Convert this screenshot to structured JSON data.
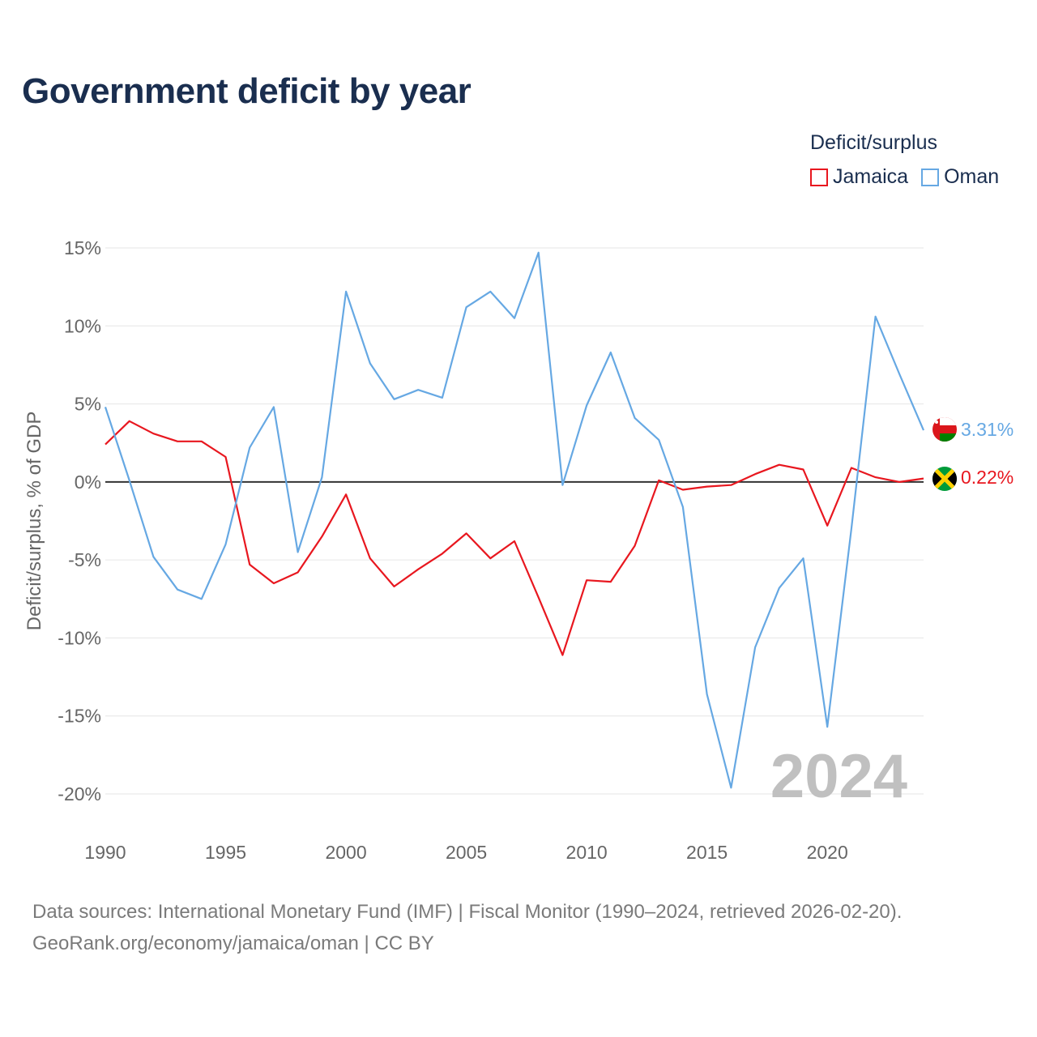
{
  "title": "Government deficit by year",
  "legend": {
    "title": "Deficit/surplus",
    "items": [
      {
        "label": "Jamaica",
        "color": "#e8171f"
      },
      {
        "label": "Oman",
        "color": "#66a8e3"
      }
    ]
  },
  "source": {
    "line1": "Data sources: International Monetary Fund (IMF) | Fiscal Monitor (1990–2024, retrieved 2026-02-20).",
    "line2": "GeoRank.org/economy/jamaica/oman | CC BY"
  },
  "chart_data": {
    "type": "line",
    "title": "Government deficit by year",
    "xlabel": "",
    "ylabel": "Deficit/surplus, % of GDP",
    "xlim": [
      1990,
      2024
    ],
    "ylim": [
      -20,
      15
    ],
    "xticks": [
      1990,
      1995,
      2000,
      2005,
      2010,
      2015,
      2020
    ],
    "xtick_labels": [
      "1990",
      "1995",
      "2000",
      "2005",
      "2010",
      "2015",
      "2020"
    ],
    "yticks": [
      15,
      10,
      5,
      0,
      -5,
      -10,
      -15,
      -20
    ],
    "ytick_labels": [
      "15%",
      "10%",
      "5%",
      "0%",
      "-5%",
      "-10%",
      "-15%",
      "-20%"
    ],
    "watermark_year": "2024",
    "grid": true,
    "legend_position": "top-right",
    "x": [
      1990,
      1991,
      1992,
      1993,
      1994,
      1995,
      1996,
      1997,
      1998,
      1999,
      2000,
      2001,
      2002,
      2003,
      2004,
      2005,
      2006,
      2007,
      2008,
      2009,
      2010,
      2011,
      2012,
      2013,
      2014,
      2015,
      2016,
      2017,
      2018,
      2019,
      2020,
      2021,
      2022,
      2023,
      2024
    ],
    "series": [
      {
        "name": "Jamaica",
        "color": "#e8171f",
        "end_label": "0.22%",
        "values": [
          2.4,
          3.9,
          3.1,
          2.6,
          2.6,
          1.6,
          -5.3,
          -6.5,
          -5.8,
          -3.5,
          -0.8,
          -4.9,
          -6.7,
          -5.6,
          -4.6,
          -3.3,
          -4.9,
          -3.8,
          -7.4,
          -11.1,
          -6.3,
          -6.4,
          -4.1,
          0.1,
          -0.5,
          -0.3,
          -0.2,
          0.5,
          1.1,
          0.8,
          -2.8,
          0.9,
          0.3,
          0.0,
          0.22
        ]
      },
      {
        "name": "Oman",
        "color": "#66a8e3",
        "end_label": "3.31%",
        "values": [
          4.8,
          0.1,
          -4.8,
          -6.9,
          -7.5,
          -4.0,
          2.2,
          4.8,
          -4.5,
          0.3,
          12.2,
          7.6,
          5.3,
          5.9,
          5.4,
          11.2,
          12.2,
          10.5,
          14.7,
          -0.2,
          4.9,
          8.3,
          4.1,
          2.7,
          -1.6,
          -13.6,
          -19.6,
          -10.6,
          -6.8,
          -4.9,
          -15.7,
          -3.0,
          10.6,
          6.9,
          3.31
        ]
      }
    ]
  }
}
